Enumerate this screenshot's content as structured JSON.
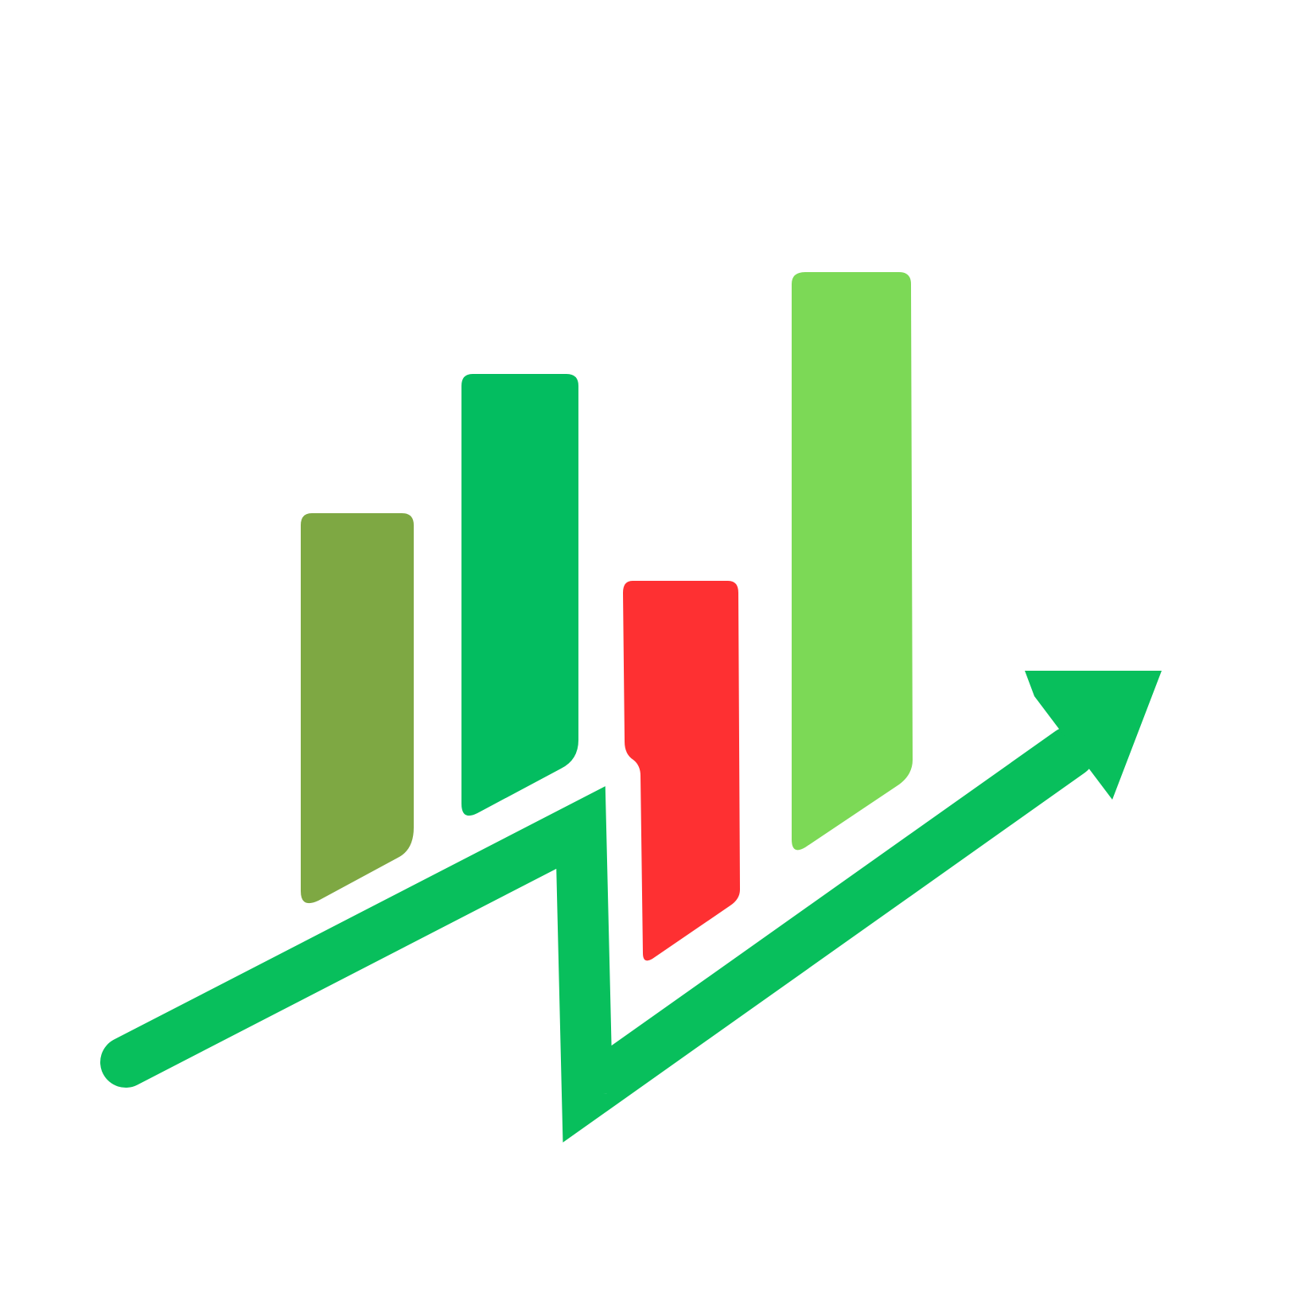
{
  "logo": {
    "icon": "growth-chart-icon",
    "background_color": "#ffffff",
    "bars": [
      {
        "name": "bar-1",
        "icon": "bar-icon",
        "color": "#7ea843"
      },
      {
        "name": "bar-2",
        "icon": "bar-icon",
        "color": "#03bd60"
      },
      {
        "name": "bar-3",
        "icon": "bar-icon",
        "color": "#fe3032"
      },
      {
        "name": "bar-4",
        "icon": "bar-icon",
        "color": "#7cd956"
      }
    ],
    "trend_arrow": {
      "icon": "trend-arrow-icon",
      "color": "#08bf5c"
    }
  }
}
